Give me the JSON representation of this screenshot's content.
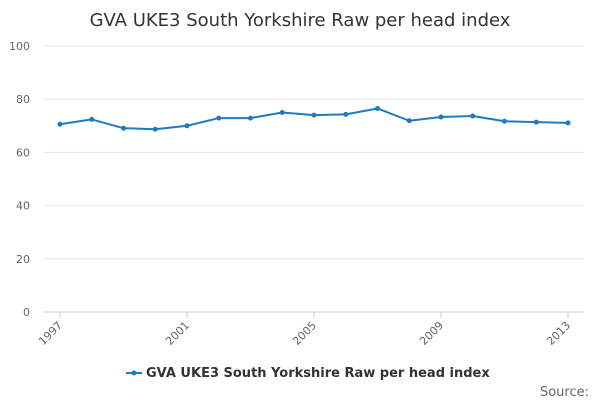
{
  "chart_data": {
    "type": "line",
    "title": "GVA UKE3 South Yorkshire Raw per head index",
    "xlabel": "",
    "ylabel": "",
    "x": [
      1997,
      1998,
      1999,
      2000,
      2001,
      2002,
      2003,
      2004,
      2005,
      2006,
      2007,
      2008,
      2009,
      2010,
      2011,
      2012,
      2013
    ],
    "x_tick_labels": [
      "1997",
      "2001",
      "2005",
      "2009",
      "2013"
    ],
    "y_ticks": [
      0,
      20,
      40,
      60,
      80,
      100
    ],
    "ylim": [
      0,
      100
    ],
    "grid": true,
    "legend_position": "bottom",
    "series": [
      {
        "name": "GVA UKE3 South Yorkshire Raw per head index",
        "color": "#1f7bbf",
        "values": [
          70.6,
          72.4,
          69.1,
          68.7,
          70.0,
          72.9,
          72.9,
          75.0,
          74.0,
          74.3,
          76.5,
          71.9,
          73.3,
          73.7,
          71.7,
          71.4,
          71.1
        ]
      }
    ]
  },
  "credits": "Source:"
}
